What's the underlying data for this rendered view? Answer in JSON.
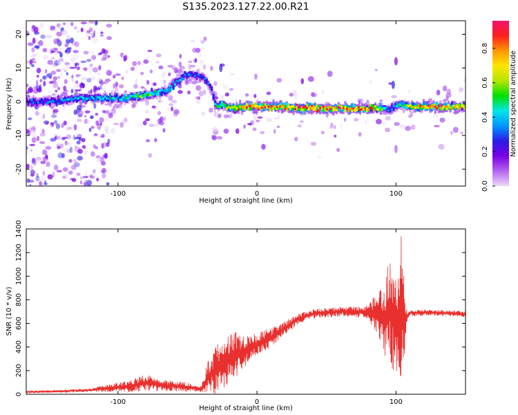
{
  "title": "S135.2023.127.22.00.R21",
  "colors": {
    "snr_line": "#e8302e",
    "colormap": [
      "#ecd9f8",
      "#b464f0",
      "#7a00e6",
      "#2a1ee6",
      "#0096ff",
      "#00e6e6",
      "#00e000",
      "#b4e600",
      "#ffe600",
      "#ff9600",
      "#ff1e1e",
      "#f0146e"
    ]
  },
  "chart_data": [
    {
      "type": "heatmap",
      "xlabel": "Height of straight line (km)",
      "ylabel": "Frequency (Hz)",
      "xlim": [
        -166,
        150
      ],
      "ylim": [
        -25,
        24
      ],
      "xticks": [
        -100,
        0,
        100
      ],
      "yticks": [
        -20,
        -10,
        0,
        10,
        20
      ],
      "colorbar": {
        "label": "Normalized spectral amplitude",
        "range": [
          0.0,
          0.96
        ],
        "ticks": [
          0.0,
          0.2,
          0.4,
          0.6,
          0.8
        ]
      },
      "ridge": {
        "x": [
          -166,
          -150,
          -130,
          -110,
          -95,
          -80,
          -65,
          -58,
          -50,
          -45,
          -38,
          -33,
          -30,
          -25,
          -20,
          -10,
          0,
          10,
          20,
          40,
          60,
          80,
          90,
          95,
          100,
          110,
          130,
          150
        ],
        "frequency": [
          0,
          0,
          1,
          1,
          1,
          2,
          3,
          6,
          8,
          8,
          7,
          4,
          -1,
          -1,
          -2,
          -1.5,
          -1.5,
          -1.5,
          -1.5,
          -2,
          -2,
          -2,
          -2,
          -2.5,
          -1,
          -1.5,
          -1.5,
          -1.5
        ],
        "amplitude": [
          0.3,
          0.35,
          0.4,
          0.45,
          0.5,
          0.55,
          0.45,
          0.4,
          0.35,
          0.3,
          0.3,
          0.3,
          0.45,
          0.55,
          0.7,
          0.8,
          0.92,
          0.9,
          0.85,
          0.85,
          0.9,
          0.85,
          0.6,
          0.3,
          0.4,
          0.7,
          0.92,
          0.7
        ]
      }
    },
    {
      "type": "line",
      "xlabel": "Height of straight line (km)",
      "ylabel": "SNR (10 * v/v)",
      "xlim": [
        -166,
        150
      ],
      "ylim": [
        0,
        1400
      ],
      "xticks": [
        -100,
        0,
        100
      ],
      "yticks": [
        0,
        200,
        400,
        600,
        800,
        1000,
        1200,
        1400
      ],
      "envelope": {
        "x": [
          -166,
          -140,
          -120,
          -100,
          -90,
          -80,
          -70,
          -60,
          -50,
          -40,
          -35,
          -30,
          -25,
          -20,
          -15,
          -10,
          0,
          10,
          20,
          30,
          40,
          50,
          60,
          70,
          80,
          85,
          90,
          92,
          95,
          97,
          100,
          102,
          104,
          106,
          108,
          110,
          130,
          150
        ],
        "mean": [
          20,
          25,
          35,
          60,
          70,
          100,
          80,
          70,
          60,
          45,
          150,
          200,
          250,
          300,
          340,
          360,
          420,
          480,
          560,
          640,
          680,
          690,
          700,
          700,
          690,
          690,
          670,
          600,
          750,
          650,
          650,
          500,
          750,
          600,
          660,
          690,
          690,
          680
        ],
        "spread": [
          10,
          12,
          15,
          40,
          55,
          70,
          55,
          45,
          40,
          30,
          150,
          200,
          240,
          220,
          200,
          150,
          100,
          80,
          60,
          45,
          40,
          40,
          40,
          45,
          60,
          150,
          250,
          300,
          450,
          500,
          400,
          550,
          650,
          400,
          60,
          30,
          25,
          25
        ]
      }
    }
  ]
}
